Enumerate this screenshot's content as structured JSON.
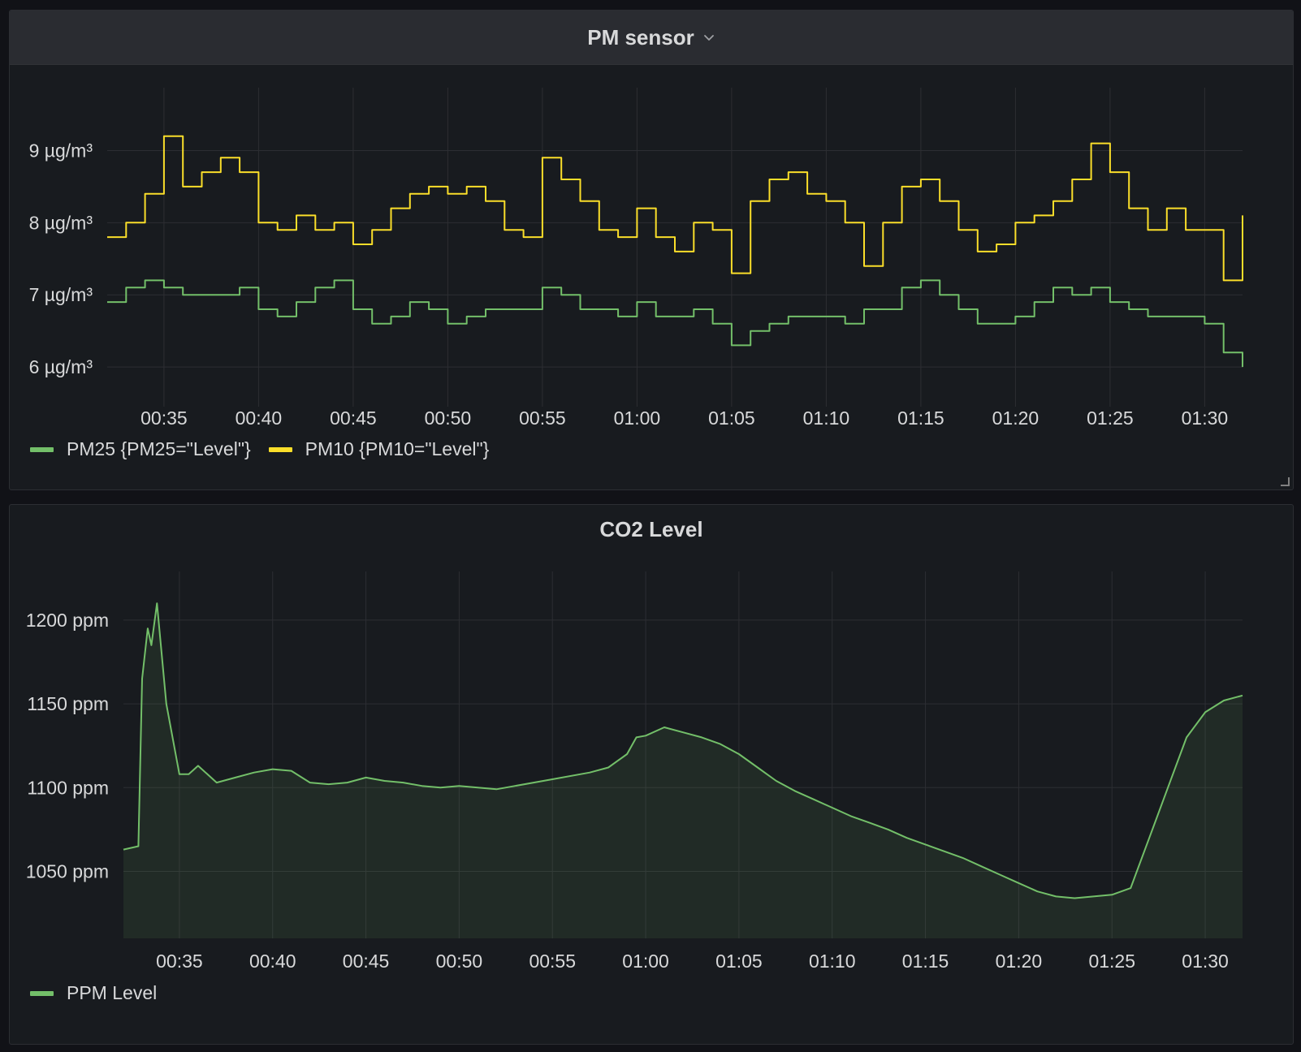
{
  "panels": {
    "pm": {
      "title": "PM sensor"
    },
    "co2": {
      "title": "CO2 Level"
    }
  },
  "colors": {
    "pm25": "#73bf69",
    "pm10": "#fade2a",
    "ppm": "#73bf69",
    "grid": "#2c2e33"
  },
  "chart_data": [
    {
      "type": "line",
      "title": "PM sensor",
      "x_ticks": [
        "00:35",
        "00:40",
        "00:45",
        "00:50",
        "00:55",
        "01:00",
        "01:05",
        "01:10",
        "01:15",
        "01:20",
        "01:25",
        "01:30"
      ],
      "x_range": [
        "00:32",
        "01:32"
      ],
      "y_ticks": [
        9,
        8,
        7,
        6
      ],
      "y_tick_labels": [
        "9 µg/m³",
        "8 µg/m³",
        "7 µg/m³",
        "6 µg/m³"
      ],
      "ylim": [
        5.45,
        9.95
      ],
      "grid": true,
      "legend_position": "bottom-left",
      "series": [
        {
          "name": "PM25 {PM25=\"Level\"}",
          "color": "#73bf69",
          "x": [
            "00:32",
            "00:33",
            "00:34",
            "00:35",
            "00:36",
            "00:37",
            "00:38",
            "00:39",
            "00:40",
            "00:41",
            "00:42",
            "00:43",
            "00:44",
            "00:45",
            "00:46",
            "00:47",
            "00:48",
            "00:49",
            "00:50",
            "00:51",
            "00:52",
            "00:53",
            "00:54",
            "00:55",
            "00:56",
            "00:57",
            "00:58",
            "00:59",
            "01:00",
            "01:01",
            "01:02",
            "01:03",
            "01:04",
            "01:05",
            "01:06",
            "01:07",
            "01:08",
            "01:09",
            "01:10",
            "01:11",
            "01:12",
            "01:13",
            "01:14",
            "01:15",
            "01:16",
            "01:17",
            "01:18",
            "01:19",
            "01:20",
            "01:21",
            "01:22",
            "01:23",
            "01:24",
            "01:25",
            "01:26",
            "01:27",
            "01:28",
            "01:29",
            "01:30",
            "01:31",
            "01:32"
          ],
          "y": [
            6.9,
            7.1,
            7.2,
            7.1,
            7.0,
            7.0,
            7.0,
            7.1,
            6.8,
            6.7,
            6.9,
            7.1,
            7.2,
            6.8,
            6.6,
            6.7,
            6.9,
            6.8,
            6.6,
            6.7,
            6.8,
            6.8,
            6.8,
            7.1,
            7.0,
            6.8,
            6.8,
            6.7,
            6.9,
            6.7,
            6.7,
            6.8,
            6.6,
            6.3,
            6.5,
            6.6,
            6.7,
            6.7,
            6.7,
            6.6,
            6.8,
            6.8,
            7.1,
            7.2,
            7.0,
            6.8,
            6.6,
            6.6,
            6.7,
            6.9,
            7.1,
            7.0,
            7.1,
            6.9,
            6.8,
            6.7,
            6.7,
            6.7,
            6.6,
            6.2,
            6.0
          ]
        },
        {
          "name": "PM10 {PM10=\"Level\"}",
          "color": "#fade2a",
          "x": [
            "00:32",
            "00:33",
            "00:34",
            "00:35",
            "00:36",
            "00:37",
            "00:38",
            "00:39",
            "00:40",
            "00:41",
            "00:42",
            "00:43",
            "00:44",
            "00:45",
            "00:46",
            "00:47",
            "00:48",
            "00:49",
            "00:50",
            "00:51",
            "00:52",
            "00:53",
            "00:54",
            "00:55",
            "00:56",
            "00:57",
            "00:58",
            "00:59",
            "01:00",
            "01:01",
            "01:02",
            "01:03",
            "01:04",
            "01:05",
            "01:06",
            "01:07",
            "01:08",
            "01:09",
            "01:10",
            "01:11",
            "01:12",
            "01:13",
            "01:14",
            "01:15",
            "01:16",
            "01:17",
            "01:18",
            "01:19",
            "01:20",
            "01:21",
            "01:22",
            "01:23",
            "01:24",
            "01:25",
            "01:26",
            "01:27",
            "01:28",
            "01:29",
            "01:30",
            "01:31",
            "01:32"
          ],
          "y": [
            7.8,
            8.0,
            8.4,
            9.2,
            8.5,
            8.7,
            8.9,
            8.7,
            8.0,
            7.9,
            8.1,
            7.9,
            8.0,
            7.7,
            7.9,
            8.2,
            8.4,
            8.5,
            8.4,
            8.5,
            8.3,
            7.9,
            7.8,
            8.9,
            8.6,
            8.3,
            7.9,
            7.8,
            8.2,
            7.8,
            7.6,
            8.0,
            7.9,
            7.3,
            8.3,
            8.6,
            8.7,
            8.4,
            8.3,
            8.0,
            7.4,
            8.0,
            8.5,
            8.6,
            8.3,
            7.9,
            7.6,
            7.7,
            8.0,
            8.1,
            8.3,
            8.6,
            9.1,
            8.7,
            8.2,
            7.9,
            8.2,
            7.9,
            7.9,
            7.2,
            8.1
          ]
        }
      ]
    },
    {
      "type": "area",
      "title": "CO2 Level",
      "x_ticks": [
        "00:35",
        "00:40",
        "00:45",
        "00:50",
        "00:55",
        "01:00",
        "01:05",
        "01:10",
        "01:15",
        "01:20",
        "01:25",
        "01:30"
      ],
      "x_range": [
        "00:32",
        "01:32"
      ],
      "y_ticks": [
        1200,
        1150,
        1100,
        1050
      ],
      "y_tick_labels": [
        "1200 ppm",
        "1150 ppm",
        "1100 ppm",
        "1050 ppm"
      ],
      "ylim": [
        1010,
        1230
      ],
      "grid": true,
      "legend_position": "bottom-left",
      "series": [
        {
          "name": "PPM Level",
          "color": "#73bf69",
          "x": [
            "00:32",
            "00:32.8",
            "00:33",
            "00:33.3",
            "00:33.5",
            "00:33.8",
            "00:34.3",
            "00:35",
            "00:35.5",
            "00:36",
            "00:37",
            "00:38",
            "00:39",
            "00:40",
            "00:41",
            "00:42",
            "00:43",
            "00:44",
            "00:45",
            "00:46",
            "00:47",
            "00:48",
            "00:49",
            "00:50",
            "00:52",
            "00:53",
            "00:55",
            "00:57",
            "00:58",
            "00:59",
            "00:59.5",
            "01:00",
            "01:01",
            "01:02",
            "01:03",
            "01:04",
            "01:05",
            "01:06",
            "01:07",
            "01:08",
            "01:09",
            "01:10",
            "01:11",
            "01:12",
            "01:13",
            "01:14",
            "01:15",
            "01:16",
            "01:17",
            "01:18",
            "01:19",
            "01:20",
            "01:21",
            "01:22",
            "01:23",
            "01:24",
            "01:25",
            "01:26",
            "01:27",
            "01:28",
            "01:29",
            "01:30",
            "01:31",
            "01:32"
          ],
          "y": [
            1063,
            1065,
            1165,
            1195,
            1185,
            1210,
            1150,
            1108,
            1108,
            1113,
            1103,
            1106,
            1109,
            1111,
            1110,
            1103,
            1102,
            1103,
            1106,
            1104,
            1103,
            1101,
            1100,
            1101,
            1099,
            1101,
            1105,
            1109,
            1112,
            1120,
            1130,
            1131,
            1136,
            1133,
            1130,
            1126,
            1120,
            1112,
            1104,
            1098,
            1093,
            1088,
            1083,
            1079,
            1075,
            1070,
            1066,
            1062,
            1058,
            1053,
            1048,
            1043,
            1038,
            1035,
            1034,
            1035,
            1036,
            1040,
            1070,
            1100,
            1130,
            1145,
            1152,
            1155
          ]
        }
      ]
    }
  ]
}
